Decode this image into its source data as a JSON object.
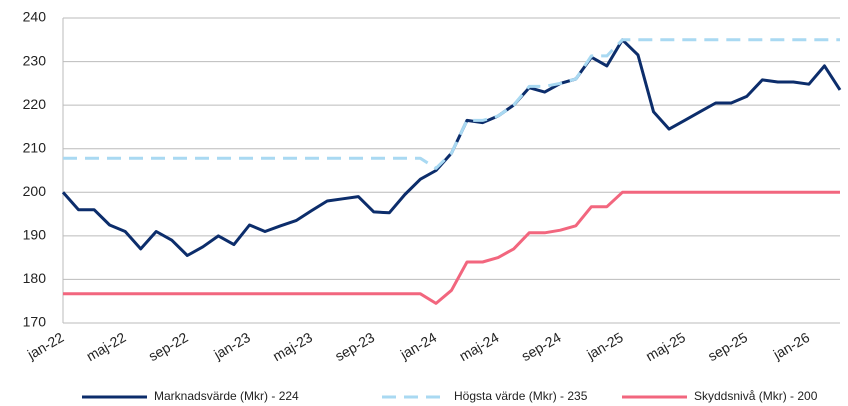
{
  "chart_data": {
    "type": "line",
    "categories": [
      "jan-22",
      null,
      null,
      null,
      "maj-22",
      null,
      null,
      null,
      "sep-22",
      null,
      null,
      null,
      "jan-23",
      null,
      null,
      null,
      "maj-23",
      null,
      null,
      null,
      "sep-23",
      null,
      null,
      null,
      "jan-24",
      null,
      null,
      null,
      "maj-24",
      null,
      null,
      null,
      "sep-24",
      null,
      null,
      null,
      "jan-25",
      null,
      null,
      null,
      "maj-25",
      null,
      null,
      null,
      "sep-25",
      null,
      null,
      null,
      "jan-26",
      null,
      null
    ],
    "series": [
      {
        "name": "Marknadsvärde (Mkr) - 224",
        "color": "#0c2d6b",
        "dash": false,
        "values": [
          200,
          196,
          196,
          192.5,
          191,
          187,
          191,
          189,
          185.5,
          187.5,
          190,
          188,
          192.5,
          191,
          192.3,
          193.5,
          195.8,
          198,
          198.5,
          199,
          195.5,
          195.3,
          199.5,
          203,
          205,
          209,
          216.5,
          216,
          217.5,
          220,
          224,
          223,
          225,
          226,
          231,
          229,
          235,
          231.5,
          218.5,
          214.5,
          216.5,
          218.5,
          220.5,
          220.5,
          222,
          225.8,
          225.3,
          225.3,
          224.8,
          229,
          223.5
        ]
      },
      {
        "name": "Högsta värde (Mkr) - 235",
        "color": "#a9d9f2",
        "dash": true,
        "values": [
          207.8,
          207.8,
          207.8,
          207.8,
          207.8,
          207.8,
          207.8,
          207.8,
          207.8,
          207.8,
          207.8,
          207.8,
          207.8,
          207.8,
          207.8,
          207.8,
          207.8,
          207.8,
          207.8,
          207.8,
          207.8,
          207.8,
          207.8,
          207.8,
          205.5,
          209,
          216.5,
          216.5,
          217.5,
          220,
          224.3,
          224.3,
          225,
          226,
          231.3,
          231.3,
          235,
          235,
          235,
          235,
          235,
          235,
          235,
          235,
          235,
          235,
          235,
          235,
          235,
          235,
          235
        ]
      },
      {
        "name": "Skyddsnivå (Mkr) - 200",
        "color": "#f2667e",
        "dash": false,
        "values": [
          176.7,
          176.7,
          176.7,
          176.7,
          176.7,
          176.7,
          176.7,
          176.7,
          176.7,
          176.7,
          176.7,
          176.7,
          176.7,
          176.7,
          176.7,
          176.7,
          176.7,
          176.7,
          176.7,
          176.7,
          176.7,
          176.7,
          176.7,
          176.7,
          174.5,
          177.5,
          184,
          184,
          185,
          187,
          190.7,
          190.7,
          191.3,
          192.3,
          196.7,
          196.7,
          200,
          200,
          200,
          200,
          200,
          200,
          200,
          200,
          200,
          200,
          200,
          200,
          200,
          200,
          200
        ]
      }
    ],
    "ylim": [
      170,
      240
    ],
    "yticks": [
      170,
      180,
      190,
      200,
      210,
      220,
      230,
      240
    ],
    "grid": true,
    "legend": "bottom"
  }
}
